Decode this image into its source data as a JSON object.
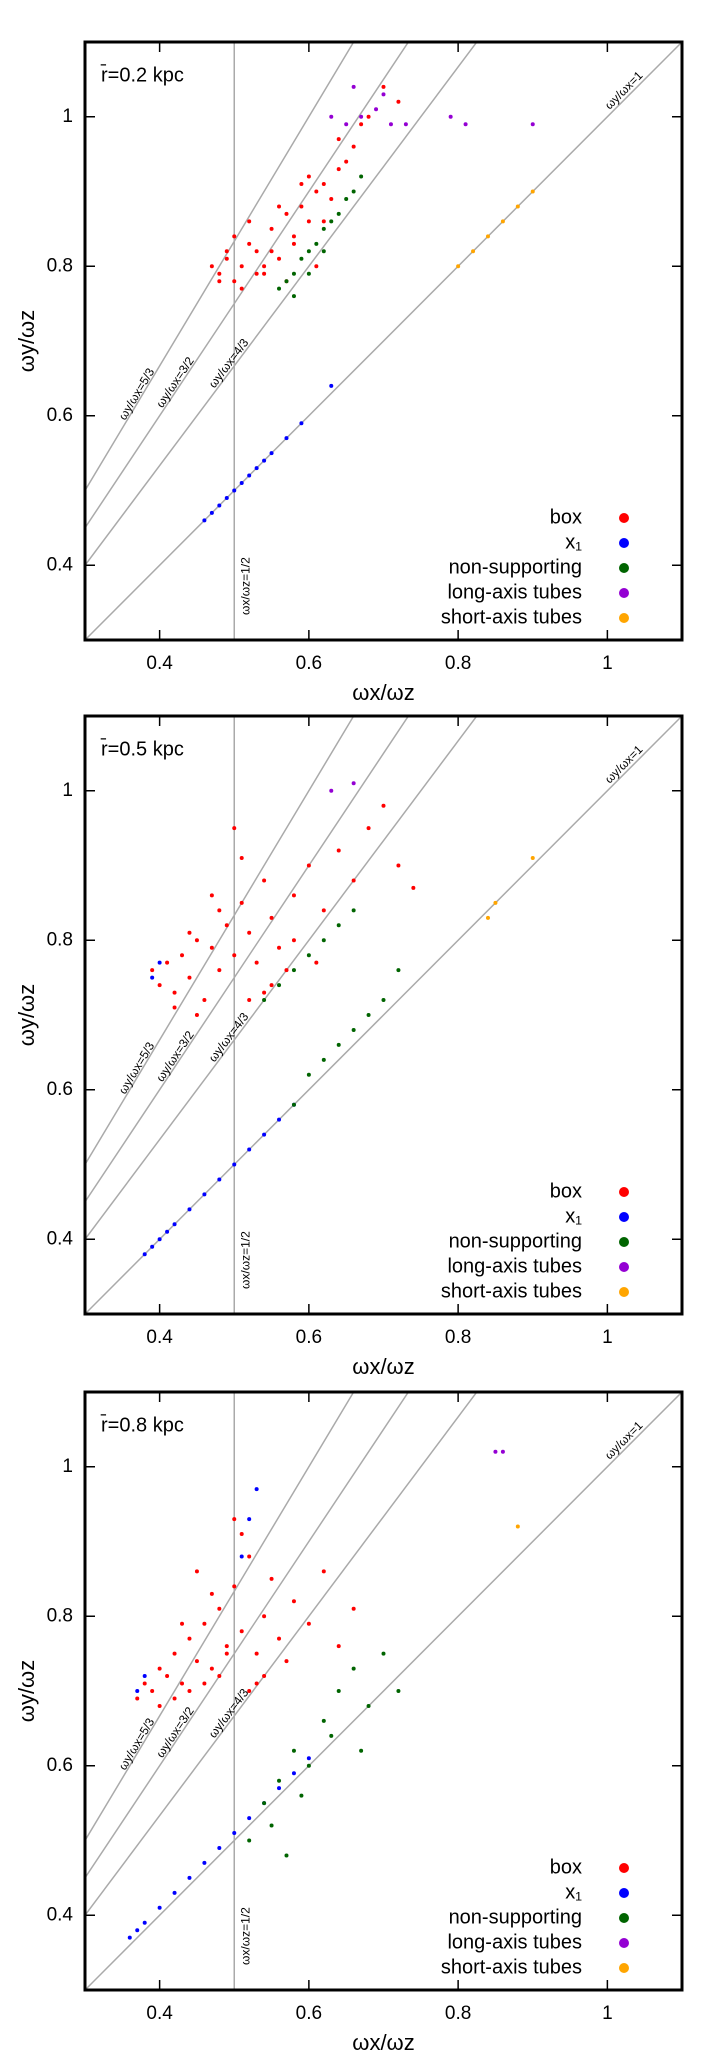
{
  "chart_data": [
    {
      "type": "scatter",
      "title": "r̄=0.2 kpc",
      "xlabel": "ωx/ωz",
      "ylabel": "ωy/ωz",
      "xlim": [
        0.3,
        1.1
      ],
      "ylim": [
        0.3,
        1.1
      ],
      "xticks": [
        0.4,
        0.6,
        0.8,
        1
      ],
      "yticks": [
        0.4,
        0.6,
        0.8,
        1
      ],
      "legend": "lower right",
      "reference_lines": [
        {
          "label": "ωy/ωx=5/3",
          "slope": 1.6667
        },
        {
          "label": "ωy/ωx=3/2",
          "slope": 1.5
        },
        {
          "label": "ωy/ωx=4/3",
          "slope": 1.3333
        },
        {
          "label": "ωy/ωx=1",
          "slope": 1
        },
        {
          "label": "ωx/ωz=1/2",
          "x": 0.5
        }
      ],
      "series": [
        {
          "name": "box",
          "color": "#ff0000",
          "x": [
            0.47,
            0.48,
            0.49,
            0.5,
            0.51,
            0.52,
            0.53,
            0.54,
            0.55,
            0.56,
            0.57,
            0.58,
            0.59,
            0.6,
            0.61,
            0.62,
            0.63,
            0.64,
            0.65,
            0.66,
            0.48,
            0.5,
            0.52,
            0.54,
            0.56,
            0.58,
            0.6,
            0.62,
            0.64,
            0.68,
            0.7,
            0.72,
            0.49,
            0.51,
            0.53,
            0.55,
            0.57,
            0.59,
            0.61,
            0.67
          ],
          "values": [
            0.8,
            0.79,
            0.81,
            0.78,
            0.8,
            0.83,
            0.82,
            0.79,
            0.85,
            0.81,
            0.87,
            0.84,
            0.88,
            0.86,
            0.9,
            0.91,
            0.89,
            0.93,
            0.94,
            0.96,
            0.78,
            0.84,
            0.86,
            0.8,
            0.88,
            0.83,
            0.92,
            0.86,
            0.97,
            1.0,
            1.04,
            1.02,
            0.82,
            0.77,
            0.79,
            0.82,
            0.78,
            0.91,
            0.8,
            0.99
          ]
        },
        {
          "name": "x₁",
          "color": "#0000ff",
          "x": [
            0.46,
            0.47,
            0.48,
            0.49,
            0.5,
            0.51,
            0.52,
            0.53,
            0.54,
            0.55,
            0.57,
            0.59,
            0.63
          ],
          "values": [
            0.46,
            0.47,
            0.48,
            0.49,
            0.5,
            0.51,
            0.52,
            0.53,
            0.54,
            0.55,
            0.57,
            0.59,
            0.64
          ]
        },
        {
          "name": "non-supporting",
          "color": "#006400",
          "x": [
            0.56,
            0.57,
            0.58,
            0.59,
            0.6,
            0.61,
            0.62,
            0.63,
            0.64,
            0.65,
            0.66,
            0.67,
            0.58,
            0.6,
            0.62
          ],
          "values": [
            0.77,
            0.78,
            0.79,
            0.81,
            0.82,
            0.83,
            0.85,
            0.86,
            0.87,
            0.89,
            0.9,
            0.92,
            0.76,
            0.79,
            0.82
          ]
        },
        {
          "name": "long-axis tubes",
          "color": "#9400d3",
          "x": [
            0.63,
            0.65,
            0.67,
            0.69,
            0.71,
            0.66,
            0.7,
            0.73,
            0.79,
            0.81,
            0.9
          ],
          "values": [
            1.0,
            0.99,
            1.0,
            1.01,
            0.99,
            1.04,
            1.03,
            0.99,
            1.0,
            0.99,
            0.99
          ]
        },
        {
          "name": "short-axis tubes",
          "color": "#ffa500",
          "x": [
            0.8,
            0.82,
            0.84,
            0.86,
            0.88,
            0.9
          ],
          "values": [
            0.8,
            0.82,
            0.84,
            0.86,
            0.88,
            0.9
          ]
        }
      ]
    },
    {
      "type": "scatter",
      "title": "r̄=0.5 kpc",
      "xlabel": "ωx/ωz",
      "ylabel": "ωy/ωz",
      "xlim": [
        0.3,
        1.1
      ],
      "ylim": [
        0.3,
        1.1
      ],
      "xticks": [
        0.4,
        0.6,
        0.8,
        1
      ],
      "yticks": [
        0.4,
        0.6,
        0.8,
        1
      ],
      "legend": "lower right",
      "reference_lines": [
        {
          "label": "ωy/ωx=5/3",
          "slope": 1.6667
        },
        {
          "label": "ωy/ωx=3/2",
          "slope": 1.5
        },
        {
          "label": "ωy/ωx=4/3",
          "slope": 1.3333
        },
        {
          "label": "ωy/ωx=1",
          "slope": 1
        },
        {
          "label": "ωx/ωz=1/2",
          "x": 0.5
        }
      ],
      "series": [
        {
          "name": "box",
          "color": "#ff0000",
          "x": [
            0.39,
            0.4,
            0.41,
            0.42,
            0.43,
            0.44,
            0.45,
            0.46,
            0.47,
            0.48,
            0.49,
            0.5,
            0.51,
            0.52,
            0.53,
            0.54,
            0.55,
            0.56,
            0.58,
            0.6,
            0.62,
            0.64,
            0.66,
            0.68,
            0.7,
            0.42,
            0.45,
            0.48,
            0.5,
            0.52,
            0.55,
            0.58,
            0.61,
            0.44,
            0.47,
            0.51,
            0.54,
            0.57,
            0.72,
            0.74
          ],
          "values": [
            0.76,
            0.74,
            0.77,
            0.73,
            0.78,
            0.75,
            0.8,
            0.72,
            0.79,
            0.76,
            0.82,
            0.78,
            0.85,
            0.81,
            0.77,
            0.88,
            0.83,
            0.79,
            0.86,
            0.9,
            0.84,
            0.92,
            0.88,
            0.95,
            0.98,
            0.71,
            0.7,
            0.84,
            0.95,
            0.72,
            0.74,
            0.8,
            0.77,
            0.81,
            0.86,
            0.91,
            0.73,
            0.76,
            0.9,
            0.87
          ]
        },
        {
          "name": "x₁",
          "color": "#0000ff",
          "x": [
            0.38,
            0.39,
            0.4,
            0.41,
            0.42,
            0.44,
            0.46,
            0.48,
            0.5,
            0.52,
            0.54,
            0.56,
            0.58,
            0.39,
            0.4
          ],
          "values": [
            0.38,
            0.39,
            0.4,
            0.41,
            0.42,
            0.44,
            0.46,
            0.48,
            0.5,
            0.52,
            0.54,
            0.56,
            0.58,
            0.75,
            0.77
          ]
        },
        {
          "name": "non-supporting",
          "color": "#006400",
          "x": [
            0.54,
            0.56,
            0.58,
            0.6,
            0.62,
            0.64,
            0.66,
            0.6,
            0.62,
            0.64,
            0.66,
            0.68,
            0.7,
            0.72,
            0.58
          ],
          "values": [
            0.72,
            0.74,
            0.76,
            0.78,
            0.8,
            0.82,
            0.84,
            0.62,
            0.64,
            0.66,
            0.68,
            0.7,
            0.72,
            0.76,
            0.58
          ]
        },
        {
          "name": "long-axis tubes",
          "color": "#9400d3",
          "x": [
            0.63,
            0.66
          ],
          "values": [
            1.0,
            1.01
          ]
        },
        {
          "name": "short-axis tubes",
          "color": "#ffa500",
          "x": [
            0.84,
            0.85,
            0.9
          ],
          "values": [
            0.83,
            0.85,
            0.91
          ]
        }
      ]
    },
    {
      "type": "scatter",
      "title": "r̄=0.8 kpc",
      "xlabel": "ωx/ωz",
      "ylabel": "ωy/ωz",
      "xlim": [
        0.3,
        1.1
      ],
      "ylim": [
        0.3,
        1.1
      ],
      "xticks": [
        0.4,
        0.6,
        0.8,
        1
      ],
      "yticks": [
        0.4,
        0.6,
        0.8,
        1
      ],
      "legend": "lower right",
      "reference_lines": [
        {
          "label": "ωy/ωx=5/3",
          "slope": 1.6667
        },
        {
          "label": "ωy/ωx=3/2",
          "slope": 1.5
        },
        {
          "label": "ωy/ωx=4/3",
          "slope": 1.3333
        },
        {
          "label": "ωy/ωx=1",
          "slope": 1
        },
        {
          "label": "ωx/ωz=1/2",
          "x": 0.5
        }
      ],
      "series": [
        {
          "name": "box",
          "color": "#ff0000",
          "x": [
            0.37,
            0.38,
            0.39,
            0.4,
            0.41,
            0.42,
            0.43,
            0.44,
            0.45,
            0.46,
            0.47,
            0.48,
            0.49,
            0.5,
            0.51,
            0.52,
            0.53,
            0.54,
            0.55,
            0.56,
            0.58,
            0.6,
            0.62,
            0.64,
            0.4,
            0.42,
            0.44,
            0.46,
            0.48,
            0.5,
            0.52,
            0.54,
            0.43,
            0.47,
            0.51,
            0.53,
            0.57,
            0.45,
            0.49,
            0.66
          ],
          "values": [
            0.69,
            0.71,
            0.7,
            0.73,
            0.72,
            0.75,
            0.71,
            0.77,
            0.74,
            0.79,
            0.73,
            0.81,
            0.76,
            0.84,
            0.78,
            0.88,
            0.75,
            0.8,
            0.85,
            0.77,
            0.82,
            0.79,
            0.86,
            0.76,
            0.68,
            0.69,
            0.7,
            0.71,
            0.72,
            0.93,
            0.7,
            0.72,
            0.79,
            0.83,
            0.91,
            0.71,
            0.74,
            0.86,
            0.75,
            0.81
          ]
        },
        {
          "name": "x₁",
          "color": "#0000ff",
          "x": [
            0.36,
            0.37,
            0.38,
            0.4,
            0.42,
            0.44,
            0.46,
            0.48,
            0.5,
            0.52,
            0.54,
            0.56,
            0.58,
            0.6,
            0.37,
            0.38,
            0.51,
            0.52,
            0.53
          ],
          "values": [
            0.37,
            0.38,
            0.39,
            0.41,
            0.43,
            0.45,
            0.47,
            0.49,
            0.51,
            0.53,
            0.55,
            0.57,
            0.59,
            0.61,
            0.7,
            0.72,
            0.88,
            0.93,
            0.97
          ]
        },
        {
          "name": "non-supporting",
          "color": "#006400",
          "x": [
            0.52,
            0.54,
            0.56,
            0.58,
            0.6,
            0.62,
            0.64,
            0.66,
            0.68,
            0.7,
            0.55,
            0.59,
            0.63,
            0.67,
            0.72,
            0.57
          ],
          "values": [
            0.5,
            0.55,
            0.58,
            0.62,
            0.6,
            0.66,
            0.7,
            0.73,
            0.68,
            0.75,
            0.52,
            0.56,
            0.64,
            0.62,
            0.7,
            0.48
          ]
        },
        {
          "name": "long-axis tubes",
          "color": "#9400d3",
          "x": [
            0.85,
            0.86
          ],
          "values": [
            1.02,
            1.02
          ]
        },
        {
          "name": "short-axis tubes",
          "color": "#ffa500",
          "x": [
            0.88
          ],
          "values": [
            0.92
          ]
        }
      ]
    }
  ]
}
